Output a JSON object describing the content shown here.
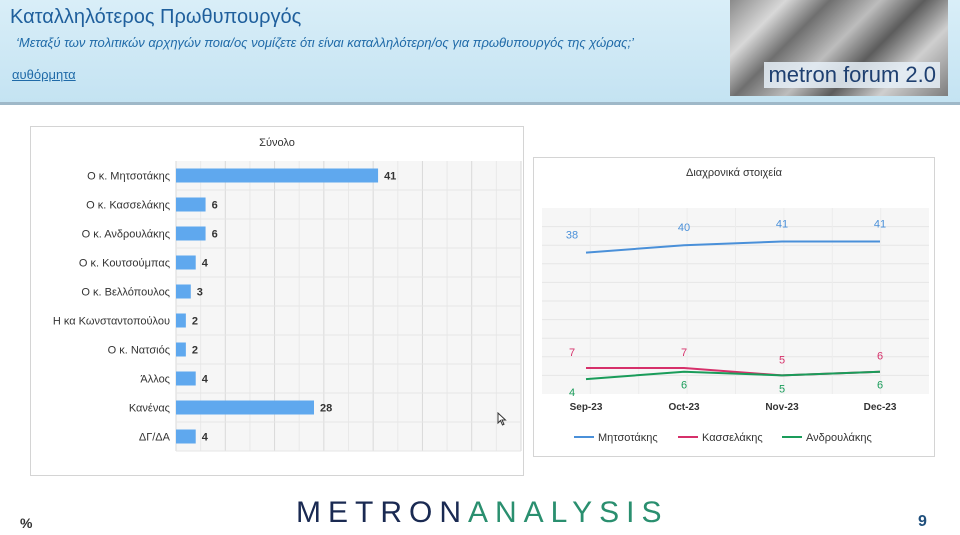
{
  "header": {
    "title": "Καταλληλότερος Πρωθυπουργός",
    "subtitle": "‘Μεταξύ των πολιτικών αρχηγών ποια/ος νομίζετε ότι είναι καταλληλότερη/ος για πρωθυπουργός της χώρας;’",
    "link": "αυθόρμητα",
    "logo_text": "metron forum 2.0"
  },
  "footer": {
    "brand_part1": "METRON",
    "brand_part2": "ANALYSIS",
    "percent": "%",
    "page": "9"
  },
  "chart_data": [
    {
      "type": "bar",
      "orientation": "horizontal",
      "title": "Σύνολο",
      "categories": [
        "Ο κ. Μητσοτάκης",
        "Ο κ. Κασσελάκης",
        "Ο κ. Ανδρουλάκης",
        "Ο κ. Κουτσούμπας",
        "Ο κ. Βελλόπουλος",
        "Η κα Κωνσταντοπούλου",
        "Ο κ. Νατσιός",
        "Άλλος",
        "Κανένας",
        "ΔΓ/ΔΑ"
      ],
      "values": [
        41,
        6,
        6,
        4,
        3,
        2,
        2,
        4,
        28,
        4
      ],
      "xlim": [
        0,
        70
      ],
      "grid": true,
      "color": "#5fa8ee"
    },
    {
      "type": "line",
      "title": "Διαχρονικά στοιχεία",
      "categories": [
        "Sep-23",
        "Oct-23",
        "Nov-23",
        "Dec-23"
      ],
      "ylim": [
        0,
        50
      ],
      "grid": true,
      "legend": "bottom",
      "series": [
        {
          "name": "Μητσοτάκης",
          "values": [
            38,
            40,
            41,
            41
          ],
          "color": "#4a90d9"
        },
        {
          "name": "Κασσελάκης",
          "values": [
            7,
            7,
            5,
            6
          ],
          "color": "#d6306a"
        },
        {
          "name": "Ανδρουλάκης",
          "values": [
            4,
            6,
            5,
            6
          ],
          "color": "#1a9c5a"
        }
      ]
    }
  ]
}
